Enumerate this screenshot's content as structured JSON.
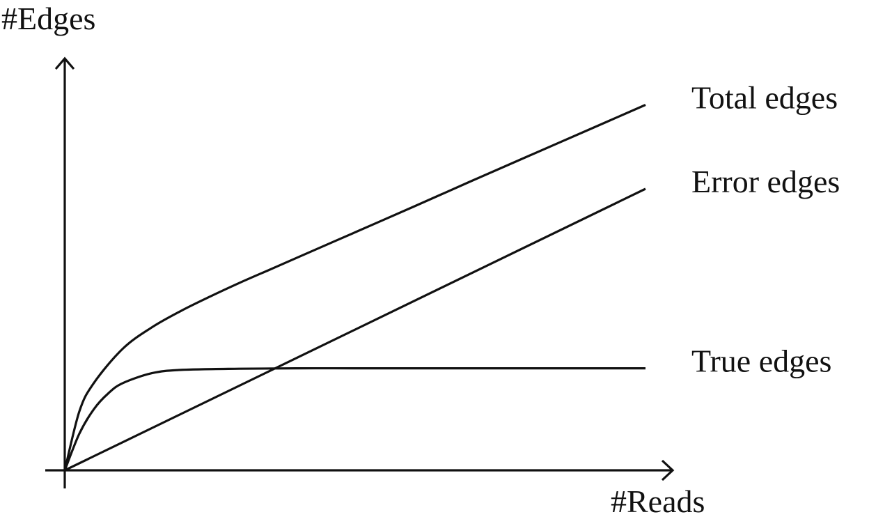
{
  "chart_data": {
    "type": "line",
    "title": "",
    "xlabel": "#Reads",
    "ylabel": "#Edges",
    "xlim": [
      0,
      10
    ],
    "ylim": [
      0,
      10
    ],
    "grid": false,
    "legend": "inline-right",
    "series": [
      {
        "name": "Total edges",
        "x": [
          0,
          0.25,
          0.5,
          1,
          1.5,
          2,
          2.5,
          3,
          3.5,
          4,
          5,
          6,
          7,
          8,
          9,
          10
        ],
        "y": [
          0,
          1.43,
          2.13,
          2.97,
          3.49,
          3.89,
          4.24,
          4.57,
          4.88,
          5.19,
          5.81,
          6.43,
          7.06,
          7.68,
          8.3,
          8.92
        ]
      },
      {
        "name": "Error edges",
        "x": [
          0,
          10
        ],
        "y": [
          0,
          6.87
        ]
      },
      {
        "name": "True edges",
        "x": [
          0,
          0.25,
          0.5,
          0.75,
          1,
          1.5,
          2,
          3,
          4,
          5,
          6,
          7,
          8,
          9,
          10
        ],
        "y": [
          0,
          0.89,
          1.49,
          1.88,
          2.13,
          2.37,
          2.45,
          2.48,
          2.49,
          2.49,
          2.49,
          2.49,
          2.49,
          2.49,
          2.49
        ]
      }
    ],
    "colors": {
      "line": "#111111",
      "text": "#111111"
    }
  }
}
